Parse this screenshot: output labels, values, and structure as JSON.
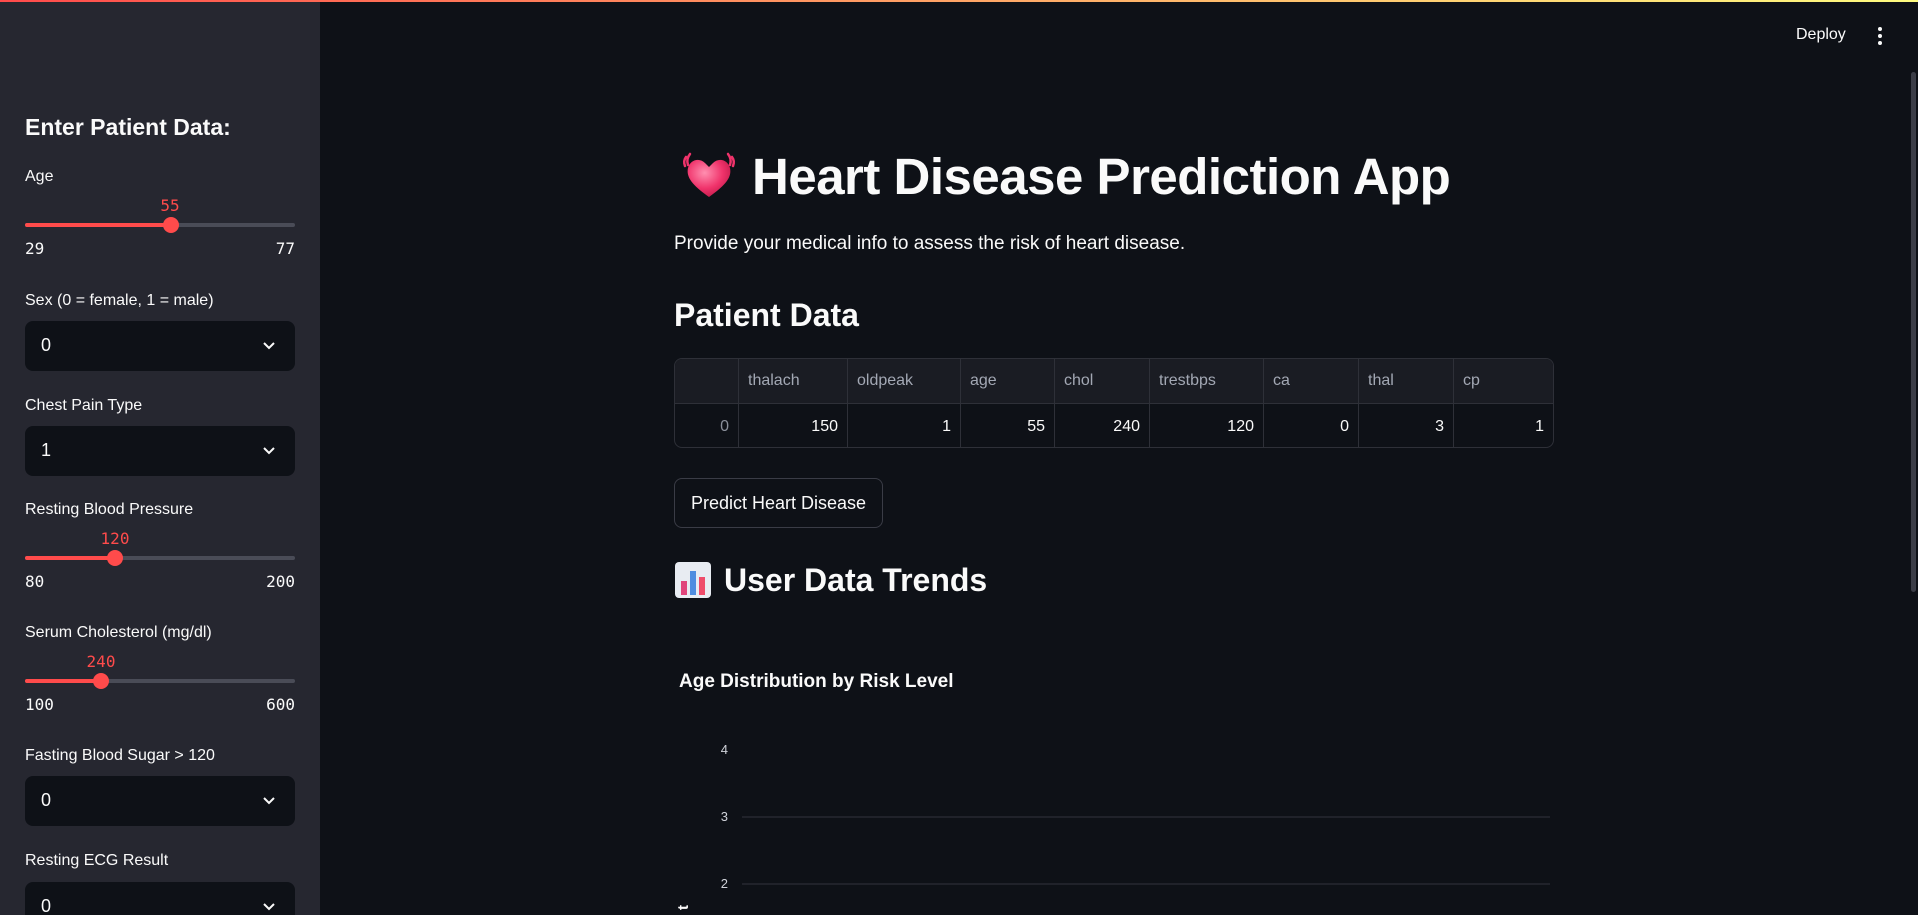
{
  "header": {
    "deploy_label": "Deploy",
    "menu_icon": "kebab-menu-icon",
    "accent_color": "#ff4b4b"
  },
  "sidebar": {
    "heading": "Enter Patient Data:",
    "age": {
      "label": "Age",
      "value": "55",
      "min": "29",
      "max": "77",
      "fraction": 0.5417
    },
    "sex": {
      "label": "Sex (0 = female, 1 = male)",
      "value": "0"
    },
    "chest_pain": {
      "label": "Chest Pain Type",
      "value": "1"
    },
    "resting_bp": {
      "label": "Resting Blood Pressure",
      "value": "120",
      "min": "80",
      "max": "200",
      "fraction": 0.3333
    },
    "cholesterol": {
      "label": "Serum Cholesterol (mg/dl)",
      "value": "240",
      "min": "100",
      "max": "600",
      "fraction": 0.28
    },
    "fasting_sugar": {
      "label": "Fasting Blood Sugar > 120",
      "value": "0"
    },
    "resting_ecg": {
      "label": "Resting ECG Result",
      "value": "0"
    }
  },
  "main": {
    "title": "Heart Disease Prediction App",
    "title_icon": "beating-heart-icon",
    "intro": "Provide your medical info to assess the risk of heart disease.",
    "patient_heading": "Patient Data",
    "table": {
      "columns": [
        "",
        "thalach",
        "oldpeak",
        "age",
        "chol",
        "trestbps",
        "ca",
        "thal",
        "cp"
      ],
      "row": [
        "0",
        "150",
        "1",
        "55",
        "240",
        "120",
        "0",
        "3",
        "1"
      ]
    },
    "predict_button": "Predict Heart Disease",
    "trends_heading": "User Data Trends",
    "trends_icon": "bar-chart-icon"
  },
  "chart_data": {
    "type": "bar",
    "title": "Age Distribution by Risk Level",
    "ylabel": "t",
    "y_ticks": [
      "4",
      "3",
      "2"
    ],
    "ylim": [
      0,
      4
    ],
    "grid": true
  }
}
